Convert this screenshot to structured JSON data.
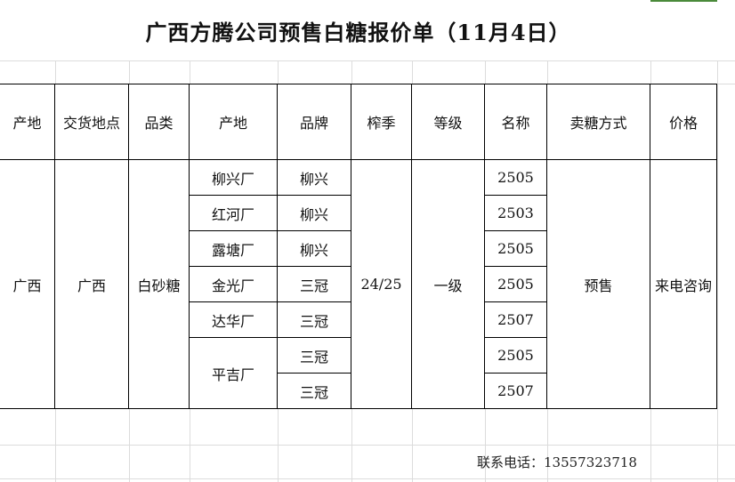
{
  "title": "广西方腾公司预售白糖报价单（11月4日）",
  "headers": [
    "产地",
    "交货地点",
    "品类",
    "产地",
    "品牌",
    "榨季",
    "等级",
    "名称",
    "卖糖方式",
    "价格"
  ],
  "merged": {
    "origin": "广西",
    "delivery": "广西",
    "category": "白砂糖",
    "season": "24/25",
    "grade": "一级",
    "sale_method": "预售",
    "price": "来电咨询"
  },
  "rows": [
    {
      "plant": "柳兴厂",
      "brand": "柳兴",
      "name": "2505"
    },
    {
      "plant": "红河厂",
      "brand": "柳兴",
      "name": "2503"
    },
    {
      "plant": "露塘厂",
      "brand": "柳兴",
      "name": "2505"
    },
    {
      "plant": "金光厂",
      "brand": "三冠",
      "name": "2505"
    },
    {
      "plant": "达华厂",
      "brand": "三冠",
      "name": "2507"
    },
    {
      "plant": "平吉厂",
      "brand": "三冠",
      "name": "2505"
    },
    {
      "plant": "",
      "brand": "三冠",
      "name": "2507"
    }
  ],
  "contact": "联系电话：13557323718",
  "colors": {
    "grid": "#dcdcdc",
    "border": "#000000",
    "selection": "#4a8a3a"
  }
}
